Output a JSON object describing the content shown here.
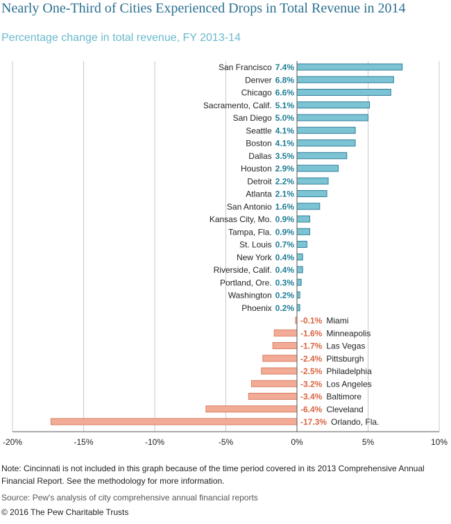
{
  "title": "Nearly One-Third of Cities Experienced Drops in Total Revenue in 2014",
  "subtitle": "Percentage change in total revenue, FY 2013-14",
  "note": "Note: Cincinnati is not included in this graph because of the time period covered in its 2013 Comprehensive Annual Financial Report. See the methodology for more information.",
  "source": "Source: Pew's analysis of city comprehensive annual financial reports",
  "copyright": "© 2016 The Pew Charitable Trusts",
  "chart_data": {
    "type": "bar",
    "orientation": "horizontal",
    "title": "Nearly One-Third of Cities Experienced Drops in Total Revenue in 2014",
    "subtitle": "Percentage change in total revenue, FY 2013-14",
    "xlabel": "",
    "ylabel": "",
    "xlim": [
      -20,
      10
    ],
    "xticks": [
      -20,
      -15,
      -10,
      -5,
      0,
      5,
      10
    ],
    "xtick_labels": [
      "-20%",
      "-15%",
      "-10%",
      "-5%",
      "0%",
      "5%",
      "10%"
    ],
    "grid": "vertical",
    "colors": {
      "positive_fill": "#7cc3d4",
      "positive_stroke": "#2f7f98",
      "positive_label": "#1f7d96",
      "negative_fill": "#f2ab96",
      "negative_stroke": "#d97d62",
      "negative_label": "#d9633f",
      "grid": "#c8c8c8"
    },
    "categories": [
      "San Francisco",
      "Denver",
      "Chicago",
      "Sacramento, Calif.",
      "San Diego",
      "Seattle",
      "Boston",
      "Dallas",
      "Houston",
      "Detroit",
      "Atlanta",
      "San Antonio",
      "Kansas City, Mo.",
      "Tampa, Fla.",
      "St. Louis",
      "New York",
      "Riverside, Calif.",
      "Portland, Ore.",
      "Washington",
      "Phoenix",
      "Miami",
      "Minneapolis",
      "Las Vegas",
      "Pittsburgh",
      "Philadelphia",
      "Los Angeles",
      "Baltimore",
      "Cleveland",
      "Orlando, Fla."
    ],
    "values": [
      7.4,
      6.8,
      6.6,
      5.1,
      5.0,
      4.1,
      4.1,
      3.5,
      2.9,
      2.2,
      2.1,
      1.6,
      0.9,
      0.9,
      0.7,
      0.4,
      0.4,
      0.3,
      0.2,
      0.2,
      -0.1,
      -1.6,
      -1.7,
      -2.4,
      -2.5,
      -3.2,
      -3.4,
      -6.4,
      -17.3
    ],
    "value_labels": [
      "7.4%",
      "6.8%",
      "6.6%",
      "5.1%",
      "5.0%",
      "4.1%",
      "4.1%",
      "3.5%",
      "2.9%",
      "2.2%",
      "2.1%",
      "1.6%",
      "0.9%",
      "0.9%",
      "0.7%",
      "0.4%",
      "0.4%",
      "0.3%",
      "0.2%",
      "0.2%",
      "-0.1%",
      "-1.6%",
      "-1.7%",
      "-2.4%",
      "-2.5%",
      "-3.2%",
      "-3.4%",
      "-6.4%",
      "-17.3%"
    ]
  }
}
